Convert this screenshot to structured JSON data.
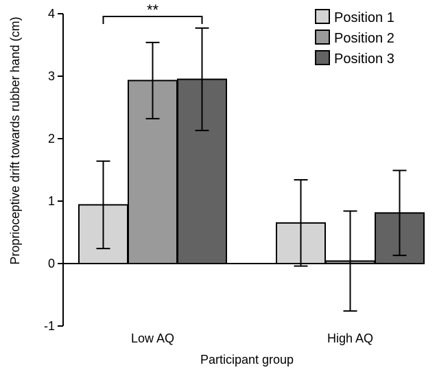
{
  "chart_data": {
    "type": "bar",
    "title": "",
    "xlabel": "Participant group",
    "ylabel": "Proprioceptive drift towards rubber hand (cm)",
    "ylim": [
      -1,
      4
    ],
    "yticks": [
      -1,
      0,
      1,
      2,
      3,
      4
    ],
    "grid": false,
    "legend_position": "top-right",
    "categories": [
      "Low AQ",
      "High AQ"
    ],
    "series": [
      {
        "name": "Position 1",
        "color": "#d4d4d4",
        "values": [
          0.94,
          0.65
        ],
        "error": [
          0.7,
          0.69
        ]
      },
      {
        "name": "Position 2",
        "color": "#9a9a9a",
        "values": [
          2.93,
          0.04
        ],
        "error": [
          0.61,
          0.8
        ]
      },
      {
        "name": "Position 3",
        "color": "#636363",
        "values": [
          2.95,
          0.81
        ],
        "error": [
          0.82,
          0.68
        ]
      }
    ],
    "annotations": [
      {
        "text": "**",
        "category": "Low AQ",
        "from_series": 0,
        "to_series": 2
      }
    ]
  }
}
